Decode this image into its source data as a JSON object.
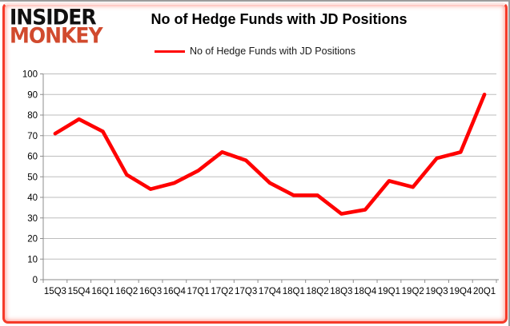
{
  "logo": {
    "line1": "INSIDER",
    "line2": "MONKEY",
    "line1_color": "#111111",
    "line2_color": "#d14a2e"
  },
  "header": {
    "title": "No of Hedge Funds with JD Positions"
  },
  "legend": {
    "label": "No of Hedge Funds with JD Positions",
    "line_color": "#ff0000"
  },
  "chart_data": {
    "type": "line",
    "title": "No of Hedge Funds with JD Positions",
    "categories": [
      "15Q3",
      "15Q4",
      "16Q1",
      "16Q2",
      "16Q3",
      "16Q4",
      "17Q1",
      "17Q2",
      "17Q3",
      "17Q4",
      "18Q1",
      "18Q2",
      "18Q3",
      "18Q4",
      "19Q1",
      "19Q2",
      "19Q3",
      "19Q4",
      "20Q1"
    ],
    "series": [
      {
        "name": "No of Hedge Funds with JD Positions",
        "color": "#ff0000",
        "values": [
          71,
          78,
          72,
          51,
          44,
          47,
          53,
          62,
          58,
          47,
          41,
          41,
          32,
          34,
          48,
          45,
          59,
          62,
          90
        ]
      }
    ],
    "xlabel": "",
    "ylabel": "",
    "ylim": [
      0,
      100
    ],
    "yticks": [
      0,
      10,
      20,
      30,
      40,
      50,
      60,
      70,
      80,
      90,
      100
    ],
    "grid": "horizontal-only",
    "legend_position": "top-center",
    "colors": {
      "gridline": "#bdbdbd",
      "axis": "#8c8c8c",
      "tick_text": "#000000",
      "background": "#ffffff"
    }
  }
}
